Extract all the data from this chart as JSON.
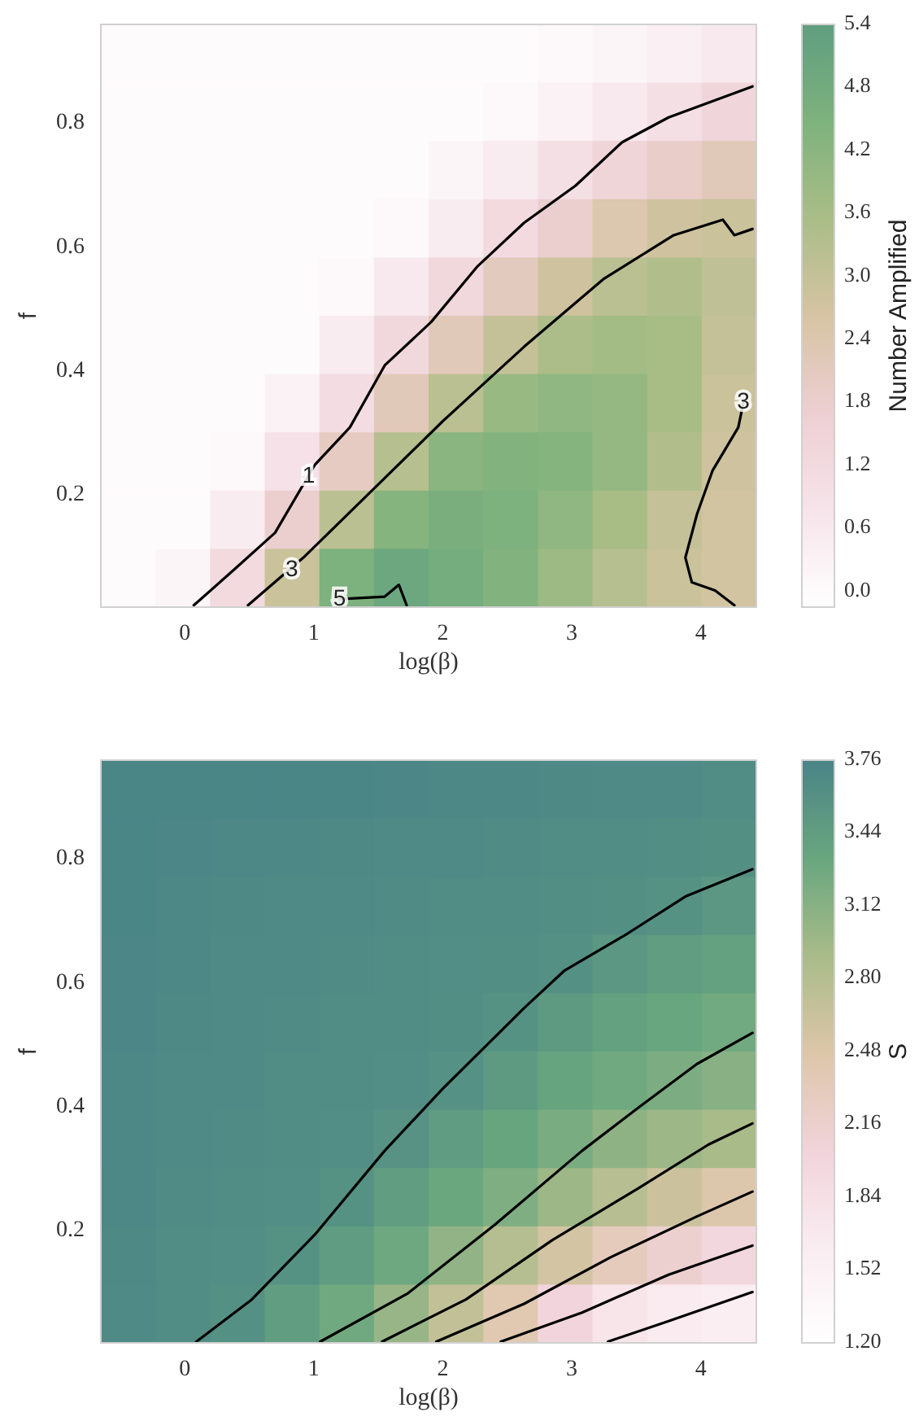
{
  "chart_data": [
    {
      "type": "heatmap",
      "xlabel": "log(β)",
      "ylabel": "f",
      "clabel": "Number Amplified",
      "xlim": [
        -0.65,
        4.43
      ],
      "xticks": [
        0,
        1,
        2,
        3,
        4
      ],
      "ylim": [
        0.02,
        0.96
      ],
      "yticks": [
        0.2,
        0.4,
        0.6,
        0.8
      ],
      "clim": [
        -0.15,
        5.4
      ],
      "cticks": [
        {
          "value": 0,
          "label": "0.0"
        },
        0.6,
        1.2,
        1.8,
        2.4,
        {
          "value": 3,
          "label": "3.0"
        },
        3.6,
        4.2,
        4.8,
        5.4
      ],
      "colors": [
        "#ffffff",
        "#f6e4ea",
        "#edcfd3",
        "#d6c4a3",
        "#aabd87",
        "#7eb27d",
        "#5f9e80"
      ],
      "cells": [
        [
          0,
          0,
          0,
          0,
          0,
          0,
          0,
          0,
          0.1,
          0.2,
          0.4,
          0.6
        ],
        [
          0,
          0,
          0,
          0,
          0,
          0,
          0,
          0.1,
          0.3,
          0.6,
          1.0,
          1.4
        ],
        [
          0,
          0,
          0,
          0,
          0,
          0,
          0.2,
          0.5,
          1.0,
          1.5,
          1.9,
          2.2
        ],
        [
          0,
          0,
          0,
          0,
          0,
          0.1,
          0.5,
          1.2,
          1.8,
          2.4,
          2.8,
          2.9
        ],
        [
          0,
          0,
          0,
          0,
          0.1,
          0.6,
          1.3,
          2.1,
          2.8,
          3.2,
          3.4,
          3.1
        ],
        [
          0,
          0,
          0,
          0,
          0.5,
          1.3,
          2.2,
          3.0,
          3.5,
          3.7,
          3.6,
          3.0
        ],
        [
          0,
          0,
          0,
          0.3,
          1.1,
          2.2,
          3.2,
          3.9,
          4.1,
          4.0,
          3.6,
          2.9
        ],
        [
          0,
          0,
          0.1,
          0.9,
          2.0,
          3.3,
          4.2,
          4.4,
          4.3,
          4.0,
          3.4,
          2.8
        ],
        [
          0,
          0,
          0.5,
          1.8,
          3.2,
          4.3,
          4.6,
          4.5,
          4.1,
          3.6,
          3.0,
          2.7
        ],
        [
          0,
          0.2,
          1.2,
          2.9,
          4.5,
          5.0,
          4.7,
          4.4,
          3.8,
          3.3,
          2.9,
          2.7
        ]
      ],
      "series": [
        {
          "type": "line",
          "color": "#000000",
          "x": [
            0.07,
            0.38,
            0.7,
            1.01,
            1.28,
            1.55,
            1.91,
            2.27,
            2.63,
            3.03,
            3.39,
            3.75,
            4.4
          ],
          "values": [
            0.023,
            0.08,
            0.14,
            0.25,
            0.31,
            0.41,
            0.48,
            0.57,
            0.64,
            0.7,
            0.77,
            0.81,
            0.86
          ]
        },
        {
          "type": "line",
          "color": "#000000",
          "x": [
            0.49,
            0.92,
            1.46,
            2.0,
            2.63,
            3.25,
            3.79,
            4.17,
            4.26,
            4.4
          ],
          "values": [
            0.023,
            0.1,
            0.21,
            0.32,
            0.44,
            0.55,
            0.62,
            0.645,
            0.62,
            0.63
          ]
        },
        {
          "type": "line",
          "color": "#000000",
          "x": [
            4.33,
            4.29,
            4.09,
            3.97,
            3.88,
            3.93,
            4.11,
            4.26
          ],
          "values": [
            0.35,
            0.31,
            0.24,
            0.17,
            0.1,
            0.06,
            0.047,
            0.023
          ]
        },
        {
          "type": "line",
          "color": "#000000",
          "x": [
            1.2,
            1.55,
            1.66,
            1.72
          ],
          "values": [
            0.033,
            0.037,
            0.056,
            0.023
          ]
        }
      ],
      "annotations": [
        {
          "text": "1",
          "x": 0.96,
          "y": 0.23
        },
        {
          "text": "3",
          "x": 0.83,
          "y": 0.08
        },
        {
          "text": "5",
          "x": 1.2,
          "y": 0.033
        },
        {
          "text": "3",
          "x": 4.33,
          "y": 0.35
        }
      ]
    },
    {
      "type": "heatmap",
      "xlabel": "log(β)",
      "ylabel": "f",
      "clabel": "S",
      "xlim": [
        -0.65,
        4.43
      ],
      "xticks": [
        0,
        1,
        2,
        3,
        4
      ],
      "ylim": [
        0.02,
        0.96
      ],
      "yticks": [
        0.2,
        0.4,
        0.6,
        0.8
      ],
      "clim": [
        1.2,
        3.76
      ],
      "cticks": [
        {
          "value": 1.2,
          "label": "1.20"
        },
        1.52,
        1.84,
        2.16,
        2.48,
        {
          "value": 2.8,
          "label": "2.80"
        },
        3.12,
        3.44,
        3.76
      ],
      "colors": [
        "#ffffff",
        "#f9ecf1",
        "#f1d3da",
        "#dcc6a8",
        "#a8bb88",
        "#68a67f",
        "#4a8487"
      ],
      "cells": [
        [
          3.74,
          3.74,
          3.74,
          3.74,
          3.74,
          3.73,
          3.72,
          3.71,
          3.7,
          3.69,
          3.68,
          3.66
        ],
        [
          3.74,
          3.73,
          3.72,
          3.71,
          3.7,
          3.69,
          3.68,
          3.67,
          3.66,
          3.65,
          3.63,
          3.62
        ],
        [
          3.74,
          3.72,
          3.7,
          3.69,
          3.68,
          3.67,
          3.66,
          3.65,
          3.63,
          3.62,
          3.59,
          3.52
        ],
        [
          3.73,
          3.71,
          3.69,
          3.68,
          3.67,
          3.66,
          3.64,
          3.63,
          3.61,
          3.52,
          3.45,
          3.4
        ],
        [
          3.73,
          3.7,
          3.68,
          3.67,
          3.66,
          3.65,
          3.63,
          3.59,
          3.48,
          3.4,
          3.33,
          3.27
        ],
        [
          3.72,
          3.69,
          3.68,
          3.66,
          3.65,
          3.64,
          3.6,
          3.48,
          3.36,
          3.28,
          3.2,
          3.12
        ],
        [
          3.72,
          3.68,
          3.67,
          3.66,
          3.64,
          3.58,
          3.46,
          3.35,
          3.22,
          3.08,
          2.98,
          2.9
        ],
        [
          3.71,
          3.67,
          3.66,
          3.64,
          3.59,
          3.45,
          3.32,
          3.18,
          2.98,
          2.78,
          2.62,
          2.45
        ],
        [
          3.7,
          3.66,
          3.64,
          3.59,
          3.46,
          3.3,
          3.06,
          2.8,
          2.55,
          2.32,
          2.15,
          1.98
        ],
        [
          3.69,
          3.65,
          3.61,
          3.45,
          3.28,
          3.02,
          2.7,
          2.4,
          2.02,
          1.75,
          1.65,
          1.58
        ]
      ],
      "series": [
        {
          "type": "line",
          "color": "#000000",
          "x": [
            0.09,
            0.52,
            1.01,
            1.55,
            2.0,
            2.63,
            2.94,
            3.43,
            3.88,
            4.4
          ],
          "values": [
            0.022,
            0.09,
            0.195,
            0.33,
            0.43,
            0.56,
            0.62,
            0.68,
            0.74,
            0.784
          ]
        },
        {
          "type": "line",
          "color": "#000000",
          "x": [
            1.05,
            1.73,
            2.4,
            3.08,
            3.52,
            3.97,
            4.4
          ],
          "values": [
            0.022,
            0.1,
            0.21,
            0.33,
            0.4,
            0.47,
            0.52
          ]
        },
        {
          "type": "line",
          "color": "#000000",
          "x": [
            1.53,
            2.18,
            2.85,
            3.52,
            4.06,
            4.4
          ],
          "values": [
            0.022,
            0.09,
            0.186,
            0.27,
            0.34,
            0.374
          ]
        },
        {
          "type": "line",
          "color": "#000000",
          "x": [
            1.95,
            2.63,
            3.3,
            3.97,
            4.4
          ],
          "values": [
            0.022,
            0.083,
            0.158,
            0.224,
            0.264
          ]
        },
        {
          "type": "line",
          "color": "#000000",
          "x": [
            2.45,
            3.08,
            3.75,
            4.4
          ],
          "values": [
            0.022,
            0.069,
            0.13,
            0.177
          ]
        },
        {
          "type": "line",
          "color": "#000000",
          "x": [
            3.28,
            3.75,
            4.4
          ],
          "values": [
            0.022,
            0.055,
            0.102
          ]
        }
      ]
    }
  ]
}
